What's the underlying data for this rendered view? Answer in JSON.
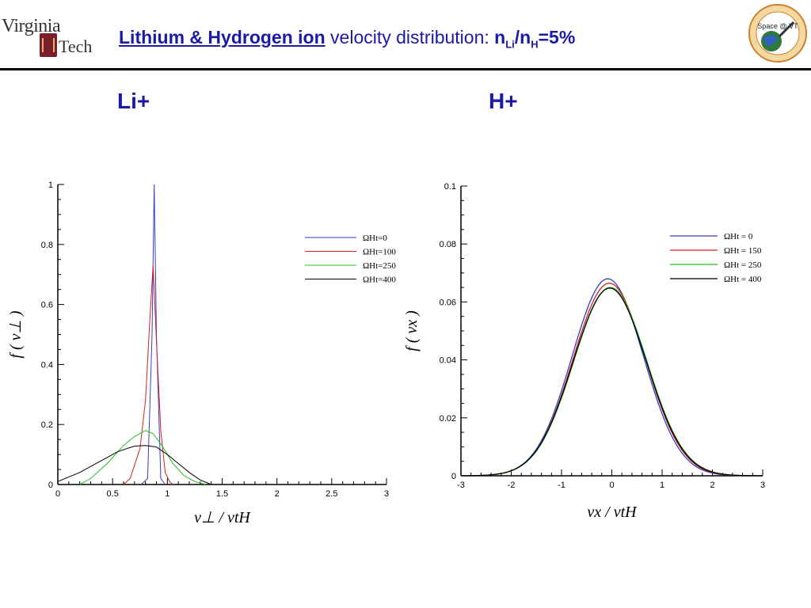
{
  "header": {
    "logo_left_text": [
      "Virginia",
      "Tech"
    ],
    "title_part1": "Lithium & Hydrogen ion",
    "title_part2": " velocity distribution: ",
    "title_ratio": {
      "n1": "n",
      "sub1": "Li",
      "sep": "/n",
      "sub2": "H",
      "tail": "=5%"
    },
    "seal_text": "Space @ VT"
  },
  "panels": {
    "left_label": "Li+",
    "right_label": "H+"
  },
  "colors": {
    "blue": "#3a3ac8",
    "red": "#d02020",
    "green": "#20c020",
    "black": "#000000",
    "title": "#1a1aa6"
  },
  "chart_data": [
    {
      "type": "line",
      "ylabel": "f ( v⊥ )",
      "xlabel": "v⊥ / vtH",
      "xlim": [
        0,
        3
      ],
      "ylim": [
        0,
        1
      ],
      "xticks": [
        0,
        0.5,
        1,
        1.5,
        2,
        2.5,
        3
      ],
      "xticklabels": [
        "0",
        "0.5",
        "1",
        "1.5",
        "2",
        "2.5",
        "3"
      ],
      "yticks": [
        0,
        0.2,
        0.4,
        0.6,
        0.8,
        1
      ],
      "yticklabels": [
        "0",
        "0.2",
        "0.4",
        "0.6",
        "0.8",
        "1"
      ],
      "legend_position": "top-right",
      "series": [
        {
          "name": "ΩHt=0",
          "color": "#3a3ac8",
          "x": [
            0.76,
            0.82,
            0.86,
            0.88,
            0.9,
            0.94,
            0.98
          ],
          "y": [
            0,
            0.02,
            0.5,
            1.0,
            0.5,
            0.02,
            0
          ]
        },
        {
          "name": "ΩHt=100",
          "color": "#d02020",
          "x": [
            0.6,
            0.66,
            0.75,
            0.8,
            0.84,
            0.87,
            0.9,
            0.94,
            0.98,
            1.02,
            1.05
          ],
          "y": [
            0,
            0.02,
            0.12,
            0.28,
            0.55,
            0.73,
            0.48,
            0.18,
            0.04,
            0.01,
            0
          ]
        },
        {
          "name": "ΩHt=250",
          "color": "#20c020",
          "x": [
            0.2,
            0.3,
            0.45,
            0.6,
            0.7,
            0.8,
            0.87,
            0.95,
            1.05,
            1.15,
            1.25,
            1.35
          ],
          "y": [
            0,
            0.02,
            0.07,
            0.13,
            0.16,
            0.18,
            0.17,
            0.13,
            0.07,
            0.03,
            0.01,
            0
          ]
        },
        {
          "name": "ΩHt=400",
          "color": "#000000",
          "x": [
            0,
            0.2,
            0.4,
            0.55,
            0.7,
            0.8,
            0.9,
            1.0,
            1.1,
            1.2,
            1.3,
            1.4
          ],
          "y": [
            0.01,
            0.04,
            0.08,
            0.11,
            0.128,
            0.13,
            0.125,
            0.1,
            0.07,
            0.04,
            0.015,
            0
          ]
        }
      ]
    },
    {
      "type": "line",
      "ylabel": "f ( vx )",
      "xlabel": "vx / vtH",
      "xlim": [
        -3,
        3
      ],
      "ylim": [
        0,
        0.1
      ],
      "xticks": [
        -3,
        -2,
        -1,
        0,
        1,
        2,
        3
      ],
      "xticklabels": [
        "-3",
        "-2",
        "-1",
        "0",
        "1",
        "2",
        "3"
      ],
      "yticks": [
        0,
        0.02,
        0.04,
        0.06,
        0.08,
        0.1
      ],
      "yticklabels": [
        "0",
        "0.02",
        "0.04",
        "0.06",
        "0.08",
        "0.1"
      ],
      "legend_position": "top-right",
      "series": [
        {
          "name": "ΩHt = 0",
          "color": "#3a3ac8",
          "peak": 0.068,
          "mu": -0.08,
          "sigma": 0.71
        },
        {
          "name": "ΩHt = 150",
          "color": "#d02020",
          "peak": 0.0665,
          "mu": -0.05,
          "sigma": 0.72
        },
        {
          "name": "ΩHt = 250",
          "color": "#20c020",
          "peak": 0.065,
          "mu": -0.03,
          "sigma": 0.73
        },
        {
          "name": "ΩHt = 400",
          "color": "#000000",
          "peak": 0.0648,
          "mu": -0.04,
          "sigma": 0.73
        }
      ]
    }
  ]
}
